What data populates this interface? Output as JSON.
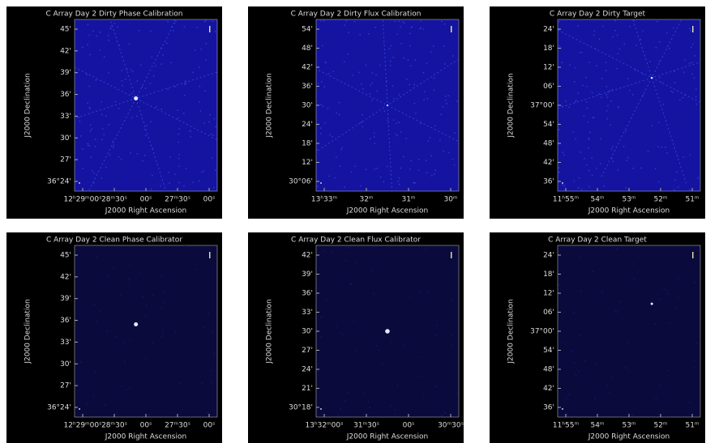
{
  "panels": [
    {
      "title": "C Array Day 2 Dirty Phase Calibration",
      "xlabel": "J2000 Right Ascension",
      "ylabel": "J2000 Declination",
      "xticks": [
        "12ʰ29ᵐ00ˢ",
        "28ᵐ30ˢ",
        "00ˢ",
        "27ᵐ30ˢ",
        "00ˢ"
      ],
      "yticks": [
        "45'",
        "42'",
        "39'",
        "36'",
        "33'",
        "30'",
        "27'",
        "36°24'"
      ]
    },
    {
      "title": "C Array Day 2 Dirty Flux Calibration",
      "xlabel": "J2000 Right Ascension",
      "ylabel": "J2000 Declination",
      "xticks": [
        "13ʰ33ᵐ",
        "32ᵐ",
        "31ᵐ",
        "30ᵐ"
      ],
      "yticks": [
        "54'",
        "48'",
        "42'",
        "36'",
        "30'",
        "24'",
        "18'",
        "12'",
        "30°06'"
      ]
    },
    {
      "title": "C Array Day 2 Dirty Target",
      "xlabel": "J2000 Right Ascension",
      "ylabel": "J2000 Declination",
      "xticks": [
        "11ʰ55ᵐ",
        "54ᵐ",
        "53ᵐ",
        "52ᵐ",
        "51ᵐ"
      ],
      "yticks": [
        "24'",
        "18'",
        "12'",
        "06'",
        "37°00'",
        "54'",
        "48'",
        "42'",
        "36'"
      ]
    },
    {
      "title": "C Array Day 2 Clean Phase Calibrator",
      "xlabel": "J2000 Right Ascension",
      "ylabel": "J2000 Declination",
      "xticks": [
        "12ʰ29ᵐ00ˢ",
        "28ᵐ30ˢ",
        "00ˢ",
        "27ᵐ30ˢ",
        "00ˢ"
      ],
      "yticks": [
        "45'",
        "42'",
        "39'",
        "36'",
        "33'",
        "30'",
        "27'",
        "36°24'"
      ]
    },
    {
      "title": "C Array Day 2 Clean Flux Calibrator",
      "xlabel": "J2000 Right Ascension",
      "ylabel": "J2000 Declination",
      "xticks": [
        "13ʰ32ᵐ00ˢ",
        "31ᵐ30ˢ",
        "00ˢ",
        "30ᵐ30ˢ"
      ],
      "yticks": [
        "42'",
        "39'",
        "36'",
        "33'",
        "30'",
        "27'",
        "24'",
        "21'",
        "30°18'"
      ]
    },
    {
      "title": "C Array Day 2 Clean Target",
      "xlabel": "J2000 Right Ascension",
      "ylabel": "J2000 Declination",
      "xticks": [
        "11ʰ55ᵐ",
        "54ᵐ",
        "53ᵐ",
        "52ᵐ",
        "51ᵐ"
      ],
      "yticks": [
        "24'",
        "18'",
        "12'",
        "06'",
        "37°00'",
        "54'",
        "48'",
        "42'",
        "36'"
      ]
    }
  ]
}
